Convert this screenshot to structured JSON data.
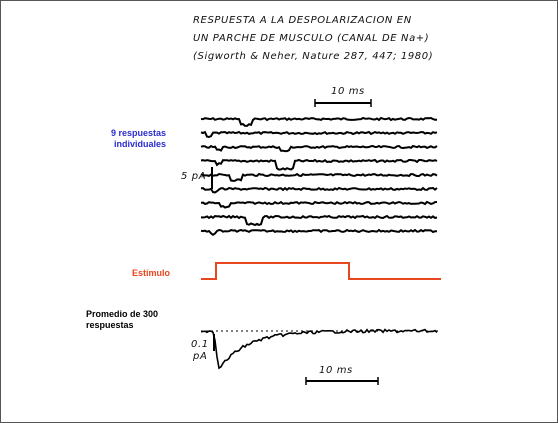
{
  "title_lines": [
    "RESPUESTA A LA DESPOLARIZACION EN",
    "UN PARCHE DE MUSCULO (CANAL DE Na+)",
    "(Sigworth & Neher, Nature 287, 447; 1980)"
  ],
  "top_scale": "10 ms",
  "current_scale": "5 pA",
  "individual_label": [
    "9 respuestas",
    "individuales"
  ],
  "stimulus_label": "Estímulo",
  "average_label": [
    "Promedio de 300",
    "respuestas"
  ],
  "average_scale": [
    "0.1",
    "pA"
  ],
  "bottom_scale": "10 ms"
}
